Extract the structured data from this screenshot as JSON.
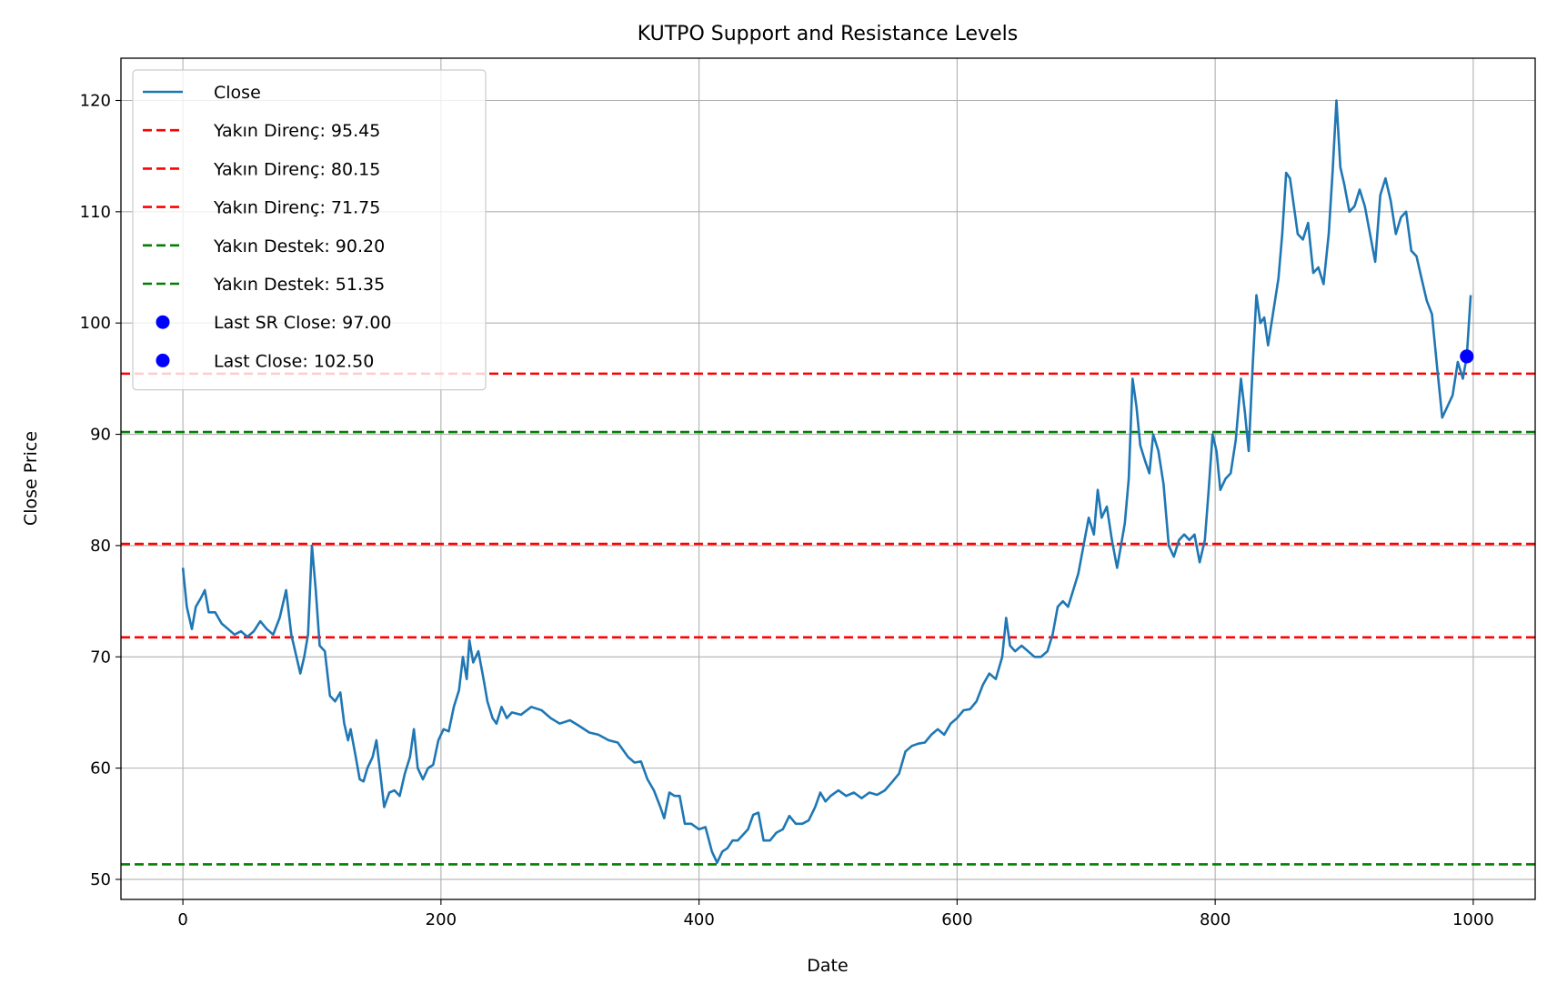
{
  "chart_data": {
    "type": "line",
    "title": "KUTPO Support and Resistance Levels",
    "xlabel": "Date",
    "ylabel": "Close Price",
    "xlim": [
      -48,
      1048
    ],
    "ylim": [
      48.2,
      123.8
    ],
    "x_ticks": [
      0,
      200,
      400,
      600,
      800,
      1000
    ],
    "y_ticks": [
      50,
      60,
      70,
      80,
      90,
      100,
      110,
      120
    ],
    "grid": true,
    "legend_position": "top-left",
    "series": [
      {
        "name": "Close",
        "color": "#1f77b4",
        "points": [
          [
            0,
            78.0
          ],
          [
            3,
            74.5
          ],
          [
            7,
            72.5
          ],
          [
            10,
            74.5
          ],
          [
            14,
            75.3
          ],
          [
            17,
            76.0
          ],
          [
            20,
            74.0
          ],
          [
            25,
            74.0
          ],
          [
            30,
            73.0
          ],
          [
            35,
            72.5
          ],
          [
            40,
            72.0
          ],
          [
            45,
            72.3
          ],
          [
            50,
            71.8
          ],
          [
            55,
            72.3
          ],
          [
            60,
            73.2
          ],
          [
            65,
            72.5
          ],
          [
            70,
            72.0
          ],
          [
            75,
            73.5
          ],
          [
            80,
            76.0
          ],
          [
            84,
            72.0
          ],
          [
            88,
            70.0
          ],
          [
            91,
            68.5
          ],
          [
            94,
            70.0
          ],
          [
            97,
            72.0
          ],
          [
            100,
            80.0
          ],
          [
            103,
            76.0
          ],
          [
            106,
            71.0
          ],
          [
            110,
            70.5
          ],
          [
            114,
            66.5
          ],
          [
            118,
            66.0
          ],
          [
            122,
            66.8
          ],
          [
            125,
            64.0
          ],
          [
            128,
            62.5
          ],
          [
            130,
            63.5
          ],
          [
            134,
            61.0
          ],
          [
            137,
            59.0
          ],
          [
            140,
            58.8
          ],
          [
            143,
            60.0
          ],
          [
            147,
            61.0
          ],
          [
            150,
            62.5
          ],
          [
            153,
            59.5
          ],
          [
            156,
            56.5
          ],
          [
            160,
            57.8
          ],
          [
            164,
            58.0
          ],
          [
            168,
            57.5
          ],
          [
            172,
            59.5
          ],
          [
            176,
            61.0
          ],
          [
            179,
            63.5
          ],
          [
            182,
            60.0
          ],
          [
            186,
            59.0
          ],
          [
            190,
            60.0
          ],
          [
            194,
            60.3
          ],
          [
            198,
            62.5
          ],
          [
            202,
            63.5
          ],
          [
            206,
            63.3
          ],
          [
            210,
            65.5
          ],
          [
            214,
            67.0
          ],
          [
            217,
            70.0
          ],
          [
            220,
            68.0
          ],
          [
            222,
            71.5
          ],
          [
            225,
            69.5
          ],
          [
            229,
            70.5
          ],
          [
            233,
            68.0
          ],
          [
            236,
            66.0
          ],
          [
            240,
            64.5
          ],
          [
            243,
            64.0
          ],
          [
            247,
            65.5
          ],
          [
            251,
            64.5
          ],
          [
            255,
            65.0
          ],
          [
            262,
            64.8
          ],
          [
            270,
            65.5
          ],
          [
            278,
            65.2
          ],
          [
            285,
            64.5
          ],
          [
            292,
            64.0
          ],
          [
            300,
            64.3
          ],
          [
            307,
            63.8
          ],
          [
            315,
            63.2
          ],
          [
            322,
            63.0
          ],
          [
            330,
            62.5
          ],
          [
            337,
            62.3
          ],
          [
            345,
            61.0
          ],
          [
            350,
            60.5
          ],
          [
            355,
            60.6
          ],
          [
            360,
            59.0
          ],
          [
            365,
            58.0
          ],
          [
            370,
            56.5
          ],
          [
            373,
            55.5
          ],
          [
            377,
            57.8
          ],
          [
            381,
            57.5
          ],
          [
            385,
            57.5
          ],
          [
            389,
            55.0
          ],
          [
            394,
            55.0
          ],
          [
            400,
            54.5
          ],
          [
            405,
            54.7
          ],
          [
            410,
            52.5
          ],
          [
            414,
            51.5
          ],
          [
            418,
            52.5
          ],
          [
            422,
            52.8
          ],
          [
            426,
            53.5
          ],
          [
            430,
            53.5
          ],
          [
            434,
            54.0
          ],
          [
            438,
            54.5
          ],
          [
            442,
            55.8
          ],
          [
            446,
            56.0
          ],
          [
            450,
            53.5
          ],
          [
            455,
            53.5
          ],
          [
            460,
            54.2
          ],
          [
            465,
            54.5
          ],
          [
            470,
            55.7
          ],
          [
            475,
            55.0
          ],
          [
            480,
            55.0
          ],
          [
            485,
            55.3
          ],
          [
            490,
            56.5
          ],
          [
            494,
            57.8
          ],
          [
            498,
            57.0
          ],
          [
            502,
            57.5
          ],
          [
            508,
            58.0
          ],
          [
            514,
            57.5
          ],
          [
            520,
            57.8
          ],
          [
            526,
            57.3
          ],
          [
            532,
            57.8
          ],
          [
            538,
            57.6
          ],
          [
            544,
            58.0
          ],
          [
            550,
            58.8
          ],
          [
            555,
            59.5
          ],
          [
            560,
            61.5
          ],
          [
            565,
            62.0
          ],
          [
            570,
            62.2
          ],
          [
            575,
            62.3
          ],
          [
            580,
            63.0
          ],
          [
            585,
            63.5
          ],
          [
            590,
            63.0
          ],
          [
            595,
            64.0
          ],
          [
            600,
            64.5
          ],
          [
            605,
            65.2
          ],
          [
            610,
            65.3
          ],
          [
            615,
            66.0
          ],
          [
            620,
            67.5
          ],
          [
            625,
            68.5
          ],
          [
            630,
            68.0
          ],
          [
            635,
            70.0
          ],
          [
            638,
            73.5
          ],
          [
            641,
            71.0
          ],
          [
            645,
            70.5
          ],
          [
            650,
            71.0
          ],
          [
            655,
            70.5
          ],
          [
            660,
            70.0
          ],
          [
            665,
            70.0
          ],
          [
            670,
            70.5
          ],
          [
            674,
            72.0
          ],
          [
            678,
            74.5
          ],
          [
            682,
            75.0
          ],
          [
            686,
            74.5
          ],
          [
            690,
            76.0
          ],
          [
            694,
            77.5
          ],
          [
            698,
            80.0
          ],
          [
            702,
            82.5
          ],
          [
            706,
            81.0
          ],
          [
            709,
            85.0
          ],
          [
            712,
            82.5
          ],
          [
            716,
            83.5
          ],
          [
            720,
            80.5
          ],
          [
            724,
            78.0
          ],
          [
            727,
            80.0
          ],
          [
            730,
            82.0
          ],
          [
            733,
            86.0
          ],
          [
            736,
            95.0
          ],
          [
            739,
            92.5
          ],
          [
            742,
            89.0
          ],
          [
            746,
            87.5
          ],
          [
            749,
            86.5
          ],
          [
            752,
            90.0
          ],
          [
            756,
            88.5
          ],
          [
            760,
            85.5
          ],
          [
            764,
            80.0
          ],
          [
            768,
            79.0
          ],
          [
            772,
            80.5
          ],
          [
            776,
            81.0
          ],
          [
            780,
            80.5
          ],
          [
            784,
            81.0
          ],
          [
            788,
            78.5
          ],
          [
            792,
            80.5
          ],
          [
            795,
            85.0
          ],
          [
            798,
            90.0
          ],
          [
            801,
            88.5
          ],
          [
            804,
            85.0
          ],
          [
            808,
            86.0
          ],
          [
            812,
            86.5
          ],
          [
            816,
            89.5
          ],
          [
            820,
            95.0
          ],
          [
            823,
            92.0
          ],
          [
            826,
            88.5
          ],
          [
            829,
            96.0
          ],
          [
            832,
            102.5
          ],
          [
            835,
            100.0
          ],
          [
            838,
            100.5
          ],
          [
            841,
            98.0
          ],
          [
            845,
            101.0
          ],
          [
            849,
            104.0
          ],
          [
            852,
            108.0
          ],
          [
            855,
            113.5
          ],
          [
            858,
            113.0
          ],
          [
            861,
            110.5
          ],
          [
            864,
            108.0
          ],
          [
            868,
            107.5
          ],
          [
            872,
            109.0
          ],
          [
            876,
            104.5
          ],
          [
            880,
            105.0
          ],
          [
            884,
            103.5
          ],
          [
            888,
            108.0
          ],
          [
            891,
            113.5
          ],
          [
            894,
            120.0
          ],
          [
            897,
            114.0
          ],
          [
            900,
            112.5
          ],
          [
            904,
            110.0
          ],
          [
            908,
            110.5
          ],
          [
            912,
            112.0
          ],
          [
            916,
            110.5
          ],
          [
            920,
            108.0
          ],
          [
            924,
            105.5
          ],
          [
            928,
            111.5
          ],
          [
            932,
            113.0
          ],
          [
            936,
            111.0
          ],
          [
            940,
            108.0
          ],
          [
            944,
            109.5
          ],
          [
            948,
            110.0
          ],
          [
            952,
            106.5
          ],
          [
            956,
            106.0
          ],
          [
            960,
            104.0
          ],
          [
            964,
            102.0
          ],
          [
            968,
            100.8
          ],
          [
            972,
            96.0
          ],
          [
            976,
            91.5
          ],
          [
            980,
            92.5
          ],
          [
            984,
            93.5
          ],
          [
            988,
            96.5
          ],
          [
            992,
            95.0
          ],
          [
            995,
            97.0
          ],
          [
            998,
            102.5
          ]
        ]
      }
    ],
    "hlines": [
      {
        "label": "Yakın Direnç: 95.45",
        "y": 95.45,
        "color": "#ff0000",
        "style": "dashed"
      },
      {
        "label": "Yakın Direnç: 80.15",
        "y": 80.15,
        "color": "#ff0000",
        "style": "dashed"
      },
      {
        "label": "Yakın Direnç: 71.75",
        "y": 71.75,
        "color": "#ff0000",
        "style": "dashed"
      },
      {
        "label": "Yakın Destek: 90.20",
        "y": 90.2,
        "color": "#008000",
        "style": "dashed"
      },
      {
        "label": "Yakın Destek: 51.35",
        "y": 51.35,
        "color": "#008000",
        "style": "dashed"
      }
    ],
    "markers": [
      {
        "label": "Last SR Close: 97.00",
        "x": 995,
        "y": 97.0,
        "color": "#0000ff"
      },
      {
        "label": "Last Close: 102.50",
        "x": 995,
        "y": 97.0,
        "color": "#0000ff"
      }
    ]
  }
}
